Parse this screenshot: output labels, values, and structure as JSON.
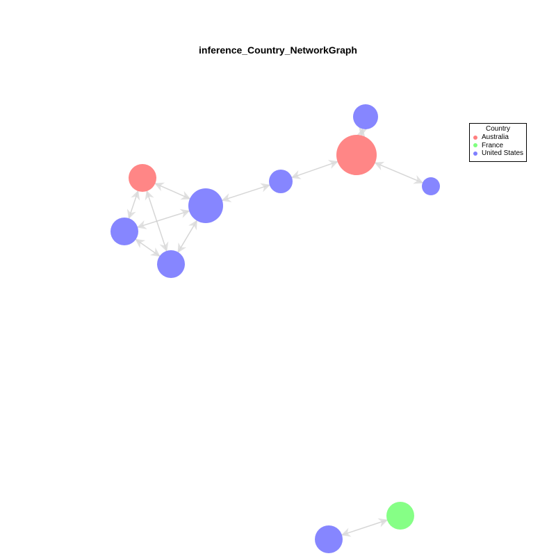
{
  "title": "inference_Country_NetworkGraph",
  "legend": {
    "title": "Country",
    "items": [
      {
        "label": "Australia",
        "color": "#ff7f7f"
      },
      {
        "label": "France",
        "color": "#7fff7f"
      },
      {
        "label": "United States",
        "color": "#7f7fff"
      }
    ]
  },
  "diagram": {
    "nodes": [
      {
        "id": "n1",
        "country": "Australia"
      },
      {
        "id": "n2",
        "country": "United States"
      },
      {
        "id": "n3",
        "country": "United States"
      },
      {
        "id": "n4",
        "country": "United States"
      },
      {
        "id": "n5",
        "country": "United States"
      },
      {
        "id": "n6",
        "country": "Australia"
      },
      {
        "id": "n7",
        "country": "United States"
      },
      {
        "id": "n8",
        "country": "United States"
      },
      {
        "id": "n9",
        "country": "France"
      },
      {
        "id": "n10",
        "country": "United States"
      }
    ],
    "edges": [
      [
        "n1",
        "n2"
      ],
      [
        "n1",
        "n3"
      ],
      [
        "n1",
        "n4"
      ],
      [
        "n3",
        "n2"
      ],
      [
        "n3",
        "n4"
      ],
      [
        "n4",
        "n2"
      ],
      [
        "n2",
        "n5"
      ],
      [
        "n5",
        "n6"
      ],
      [
        "n6",
        "n7"
      ],
      [
        "n6",
        "n8"
      ],
      [
        "n9",
        "n10"
      ]
    ]
  }
}
